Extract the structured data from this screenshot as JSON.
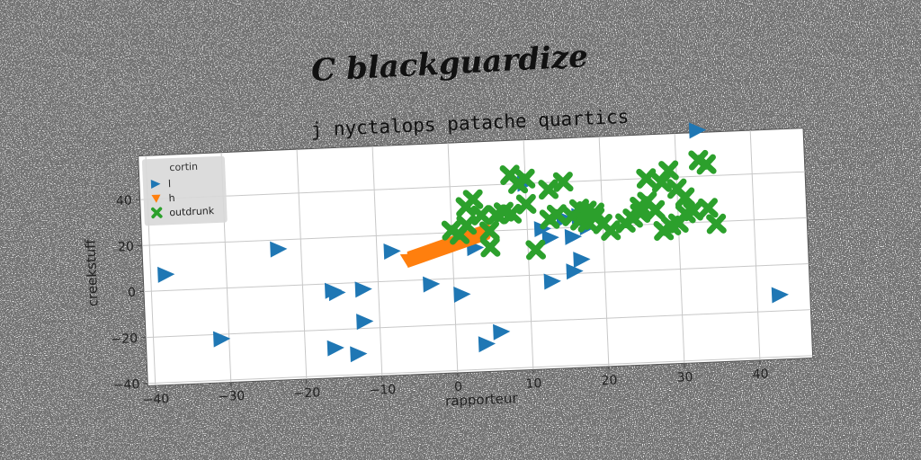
{
  "suptitle": "C blackguardize",
  "chart_data": {
    "type": "scatter",
    "title": "j nyctalops patache quartics",
    "xlabel": "rapporteur",
    "ylabel": "creekstuff",
    "xlim": [
      -41,
      47
    ],
    "ylim": [
      -41,
      59
    ],
    "xticks": [
      "−40",
      "−30",
      "−20",
      "−10",
      "0",
      "10",
      "20",
      "30",
      "40"
    ],
    "yticks": [
      "−40",
      "−20",
      "0",
      "20",
      "40"
    ],
    "xtick_values": [
      -40,
      -30,
      -20,
      -10,
      0,
      10,
      20,
      30,
      40
    ],
    "ytick_values": [
      -40,
      -20,
      0,
      20,
      40
    ],
    "grid": true,
    "legend": {
      "title": "cortin",
      "placement": "top-left"
    },
    "series": [
      {
        "name": "l",
        "marker": "triangle-right",
        "color": "#1f77b4",
        "points": [
          [
            -38,
            7
          ],
          [
            -31,
            -22
          ],
          [
            -23,
            16
          ],
          [
            -16,
            -3
          ],
          [
            -15.5,
            -4
          ],
          [
            -16,
            -28
          ],
          [
            -13,
            -31
          ],
          [
            -12,
            -3
          ],
          [
            -12,
            -17
          ],
          [
            -8,
            13
          ],
          [
            -3,
            -2
          ],
          [
            1,
            -7
          ],
          [
            3,
            13
          ],
          [
            4,
            -29
          ],
          [
            6,
            -24
          ],
          [
            10,
            40
          ],
          [
            12,
            20
          ],
          [
            13,
            16
          ],
          [
            13,
            -3
          ],
          [
            16,
            1
          ],
          [
            16,
            16
          ],
          [
            17,
            6
          ],
          [
            17,
            25
          ],
          [
            33,
            60
          ],
          [
            43,
            -13
          ],
          [
            15,
            24
          ],
          [
            18,
            20
          ]
        ]
      },
      {
        "name": "h",
        "marker": "triangle-down",
        "color": "#ff7f0e",
        "points": [
          [
            -6,
            9
          ],
          [
            -4,
            11
          ],
          [
            -2,
            13
          ],
          [
            0,
            15
          ],
          [
            2,
            17
          ],
          [
            4,
            19
          ],
          [
            5,
            20
          ]
        ]
      },
      {
        "name": "outdrunk",
        "marker": "x",
        "color": "#2ca02c",
        "points": [
          [
            0,
            21
          ],
          [
            1,
            19
          ],
          [
            2,
            23
          ],
          [
            2,
            31
          ],
          [
            3,
            34
          ],
          [
            4,
            27
          ],
          [
            5,
            13
          ],
          [
            5,
            20
          ],
          [
            6,
            27
          ],
          [
            7,
            28
          ],
          [
            8,
            27
          ],
          [
            8,
            44
          ],
          [
            9,
            40
          ],
          [
            10,
            42
          ],
          [
            10,
            31
          ],
          [
            11,
            11
          ],
          [
            13,
            37
          ],
          [
            13,
            24
          ],
          [
            14,
            26
          ],
          [
            15,
            40
          ],
          [
            16,
            25
          ],
          [
            17,
            23
          ],
          [
            17,
            28
          ],
          [
            18,
            27
          ],
          [
            18,
            22
          ],
          [
            19,
            24
          ],
          [
            19,
            26
          ],
          [
            20,
            21
          ],
          [
            21,
            18
          ],
          [
            23,
            21
          ],
          [
            24,
            23
          ],
          [
            25,
            25
          ],
          [
            25,
            28
          ],
          [
            26,
            30
          ],
          [
            26,
            40
          ],
          [
            27,
            26
          ],
          [
            28,
            17
          ],
          [
            28,
            38
          ],
          [
            29,
            43
          ],
          [
            29,
            19
          ],
          [
            30,
            20
          ],
          [
            30,
            35
          ],
          [
            31,
            24
          ],
          [
            31,
            31
          ],
          [
            32,
            25
          ],
          [
            33,
            47
          ],
          [
            34,
            45
          ],
          [
            34,
            26
          ],
          [
            35,
            19
          ]
        ]
      }
    ]
  }
}
